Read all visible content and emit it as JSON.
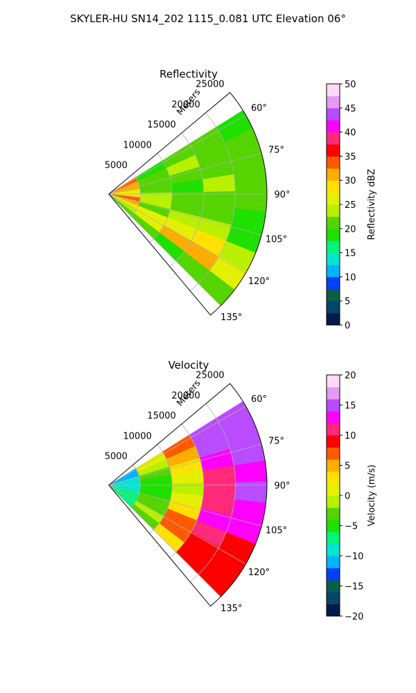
{
  "figure": {
    "title": "SKYLER-HU  SN14_202  1115_0.081 UTC Elevation 06°"
  },
  "chart_data": [
    {
      "type": "polar-sector-ppi",
      "title": "Reflectivity",
      "radial_label": "Meters",
      "radial_ticks": [
        5000,
        10000,
        15000,
        20000,
        25000
      ],
      "radial_tick_labels": [
        "5000",
        "10000",
        "15000",
        "20000",
        "25000"
      ],
      "rlim": [
        0,
        25000
      ],
      "theta_range_deg": [
        50,
        140
      ],
      "theta_ticks": [
        60,
        75,
        90,
        105,
        120,
        135
      ],
      "theta_tick_labels": [
        "60°",
        "75°",
        "90°",
        "105°",
        "120°",
        "135°"
      ],
      "grid": true,
      "colorbar": {
        "label": "Reflectivity dBZ",
        "min": 0,
        "max": 50,
        "ticks": [
          0,
          5,
          10,
          15,
          20,
          25,
          30,
          35,
          40,
          45,
          50
        ],
        "tick_labels": [
          "0",
          "5",
          "10",
          "15",
          "20",
          "25",
          "30",
          "35",
          "40",
          "45",
          "50"
        ],
        "colors": [
          "#001a4d",
          "#04456b",
          "#0b5e4a",
          "#0040ff",
          "#00b3ff",
          "#00e6d2",
          "#00f57a",
          "#1fe000",
          "#55d400",
          "#b8f000",
          "#e5f000",
          "#ffe100",
          "#ffad00",
          "#ff5a00",
          "#ff0000",
          "#ff2a7a",
          "#ff00ff",
          "#b94cff",
          "#e49af5",
          "#ffd9f5"
        ]
      },
      "value_field_description": "",
      "rings": [
        {
          "r": [
            0,
            5000
          ],
          "values": [
            34,
            32,
            30,
            26,
            28,
            33,
            31,
            27,
            24,
            22
          ]
        },
        {
          "r": [
            5000,
            10000
          ],
          "values": [
            18,
            20,
            22,
            21,
            24,
            23,
            22,
            25,
            27,
            20
          ]
        },
        {
          "r": [
            10000,
            15000
          ],
          "values": [
            20,
            23,
            21,
            19,
            22,
            21,
            23,
            26,
            30,
            19
          ]
        },
        {
          "r": [
            15000,
            20000
          ],
          "values": [
            21,
            22,
            20,
            23,
            21,
            22,
            24,
            28,
            31,
            22
          ]
        },
        {
          "r": [
            20000,
            25000
          ],
          "values": [
            19,
            21,
            22,
            20,
            22,
            18,
            19,
            24,
            27,
            21
          ]
        }
      ],
      "sector_coverage_deg": [
        58,
        135
      ]
    },
    {
      "type": "polar-sector-ppi",
      "title": "Velocity",
      "radial_label": "Meters",
      "radial_ticks": [
        5000,
        10000,
        15000,
        20000,
        25000
      ],
      "radial_tick_labels": [
        "5000",
        "10000",
        "15000",
        "20000",
        "25000"
      ],
      "rlim": [
        0,
        25000
      ],
      "theta_range_deg": [
        50,
        140
      ],
      "theta_ticks": [
        60,
        75,
        90,
        105,
        120,
        135
      ],
      "theta_tick_labels": [
        "60°",
        "75°",
        "90°",
        "105°",
        "120°",
        "135°"
      ],
      "grid": true,
      "colorbar": {
        "label": "Velocity (m/s)",
        "min": -20,
        "max": 20,
        "ticks": [
          -20,
          -15,
          -10,
          -5,
          0,
          5,
          10,
          15,
          20
        ],
        "tick_labels": [
          "−20",
          "−15",
          "−10",
          "−5",
          "0",
          "5",
          "10",
          "15",
          "20"
        ],
        "colors": [
          "#001a4d",
          "#04456b",
          "#0b5e4a",
          "#0040ff",
          "#00b3ff",
          "#00e6d2",
          "#00f57a",
          "#1fe000",
          "#55d400",
          "#b8f000",
          "#e5f000",
          "#ffe100",
          "#ffad00",
          "#ff5a00",
          "#ff0000",
          "#ff2a7a",
          "#ff00ff",
          "#b94cff",
          "#e49af5",
          "#ffd9f5"
        ]
      },
      "rings": [
        {
          "r": [
            0,
            5000
          ],
          "values": [
            -12,
            -11,
            -10,
            -10,
            -9,
            -9,
            -8,
            -8,
            -7,
            -7
          ]
        },
        {
          "r": [
            5000,
            10000
          ],
          "values": [
            0,
            -1,
            -3,
            -5,
            -6,
            -5,
            -4,
            -3,
            -2,
            -3
          ]
        },
        {
          "r": [
            10000,
            15000
          ],
          "values": [
            6,
            5,
            3,
            1,
            -1,
            1,
            3,
            6,
            7,
            2
          ]
        },
        {
          "r": [
            15000,
            20000
          ],
          "values": [
            15,
            14,
            12,
            11,
            10,
            11,
            12,
            10,
            8,
            9
          ]
        },
        {
          "r": [
            20000,
            25000
          ],
          "values": [
            14,
            15,
            15,
            13,
            14,
            13,
            12,
            9,
            8,
            8
          ]
        }
      ],
      "sector_coverage_deg": [
        58,
        135
      ]
    }
  ]
}
